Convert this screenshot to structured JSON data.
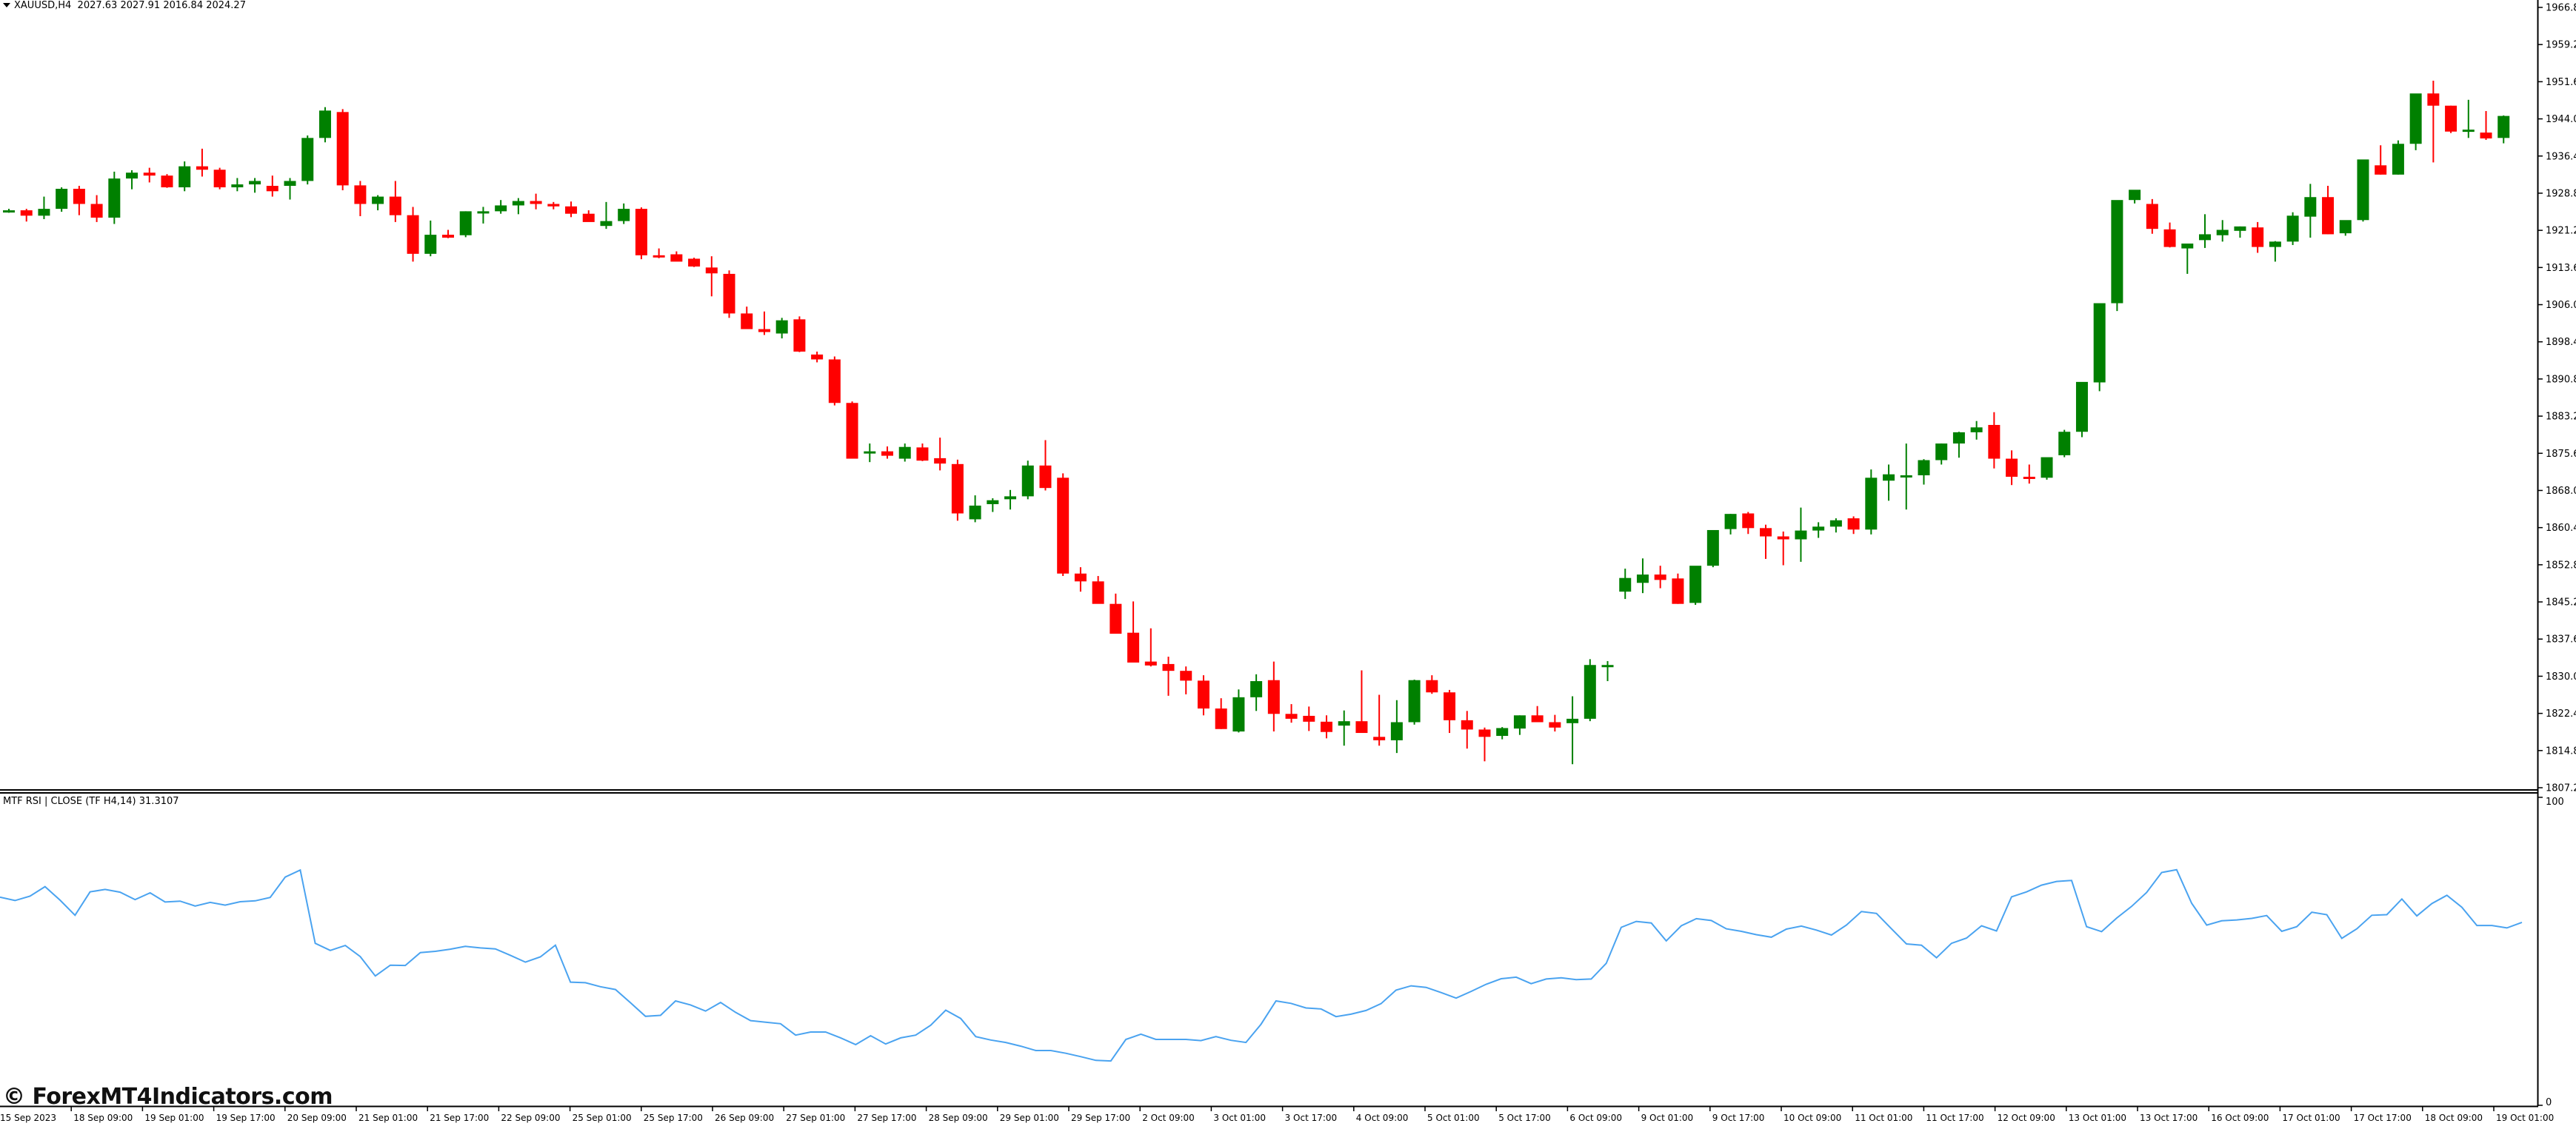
{
  "header": {
    "symbol": "XAUUSD,H4",
    "ohlc": "2027.63 2027.91 2016.84 2024.27"
  },
  "indicator": {
    "label": "MTF RSI | CLOSE  (TF H4,14) 31.3107",
    "line_color": "#4aa3f0"
  },
  "watermark": "© ForexMT4Indicators.com",
  "colors": {
    "bull": "#008000",
    "bear": "#ff0000",
    "axis": "#000000",
    "background": "#ffffff"
  },
  "chart_data": [
    {
      "type": "candlestick",
      "title": "XAUUSD,H4",
      "ylabel": "Price",
      "ylim": [
        1807.2,
        1966.8
      ],
      "y_ticks": [
        "1966.8",
        "1959.2",
        "1951.6",
        "1944.0",
        "1936.4",
        "1928.8",
        "1921.2",
        "1913.6",
        "1906.0",
        "1898.4",
        "1890.8",
        "1883.2",
        "1875.6",
        "1868.0",
        "1860.4",
        "1852.8",
        "1845.2",
        "1837.6",
        "1830.0",
        "1822.4",
        "1814.8",
        "1807.2"
      ],
      "x_ticks": [
        "15 Sep 2023",
        "18 Sep 09:00",
        "19 Sep 01:00",
        "19 Sep 17:00",
        "20 Sep 09:00",
        "21 Sep 01:00",
        "21 Sep 17:00",
        "22 Sep 09:00",
        "25 Sep 01:00",
        "25 Sep 17:00",
        "26 Sep 09:00",
        "27 Sep 01:00",
        "27 Sep 17:00",
        "28 Sep 09:00",
        "29 Sep 01:00",
        "29 Sep 17:00",
        "2 Oct 09:00",
        "3 Oct 01:00",
        "3 Oct 17:00",
        "4 Oct 09:00",
        "5 Oct 01:00",
        "5 Oct 17:00",
        "6 Oct 09:00",
        "9 Oct 01:00",
        "9 Oct 17:00",
        "10 Oct 09:00",
        "11 Oct 01:00",
        "11 Oct 17:00",
        "12 Oct 09:00",
        "13 Oct 01:00",
        "13 Oct 17:00",
        "16 Oct 09:00",
        "17 Oct 01:00",
        "17 Oct 17:00",
        "18 Oct 09:00",
        "19 Oct 01:00"
      ],
      "grid": false,
      "candles": [
        [
          1925.3,
          1925.6,
          1924.8,
          1925.3
        ],
        [
          1925.3,
          1925.6,
          1923.0,
          1924.2
        ],
        [
          1924.2,
          1928.1,
          1923.5,
          1925.6
        ],
        [
          1925.6,
          1930.0,
          1925.0,
          1929.7
        ],
        [
          1929.7,
          1930.3,
          1924.3,
          1926.6
        ],
        [
          1926.6,
          1928.4,
          1922.9,
          1923.8
        ],
        [
          1923.8,
          1933.2,
          1922.5,
          1931.8
        ],
        [
          1931.8,
          1933.5,
          1929.6,
          1933.0
        ],
        [
          1933.0,
          1934.0,
          1931.0,
          1932.4
        ],
        [
          1932.4,
          1932.7,
          1929.9,
          1930.0
        ],
        [
          1930.0,
          1935.3,
          1929.2,
          1934.3
        ],
        [
          1934.3,
          1937.9,
          1932.2,
          1933.6
        ],
        [
          1933.6,
          1934.0,
          1929.6,
          1930.0
        ],
        [
          1930.0,
          1931.9,
          1929.2,
          1930.6
        ],
        [
          1930.6,
          1931.9,
          1928.9,
          1931.3
        ],
        [
          1930.3,
          1932.4,
          1928.1,
          1929.2
        ],
        [
          1930.3,
          1931.9,
          1927.5,
          1931.3
        ],
        [
          1931.3,
          1940.6,
          1930.6,
          1940.1
        ],
        [
          1940.1,
          1946.4,
          1939.2,
          1945.7
        ],
        [
          1945.4,
          1946.0,
          1929.4,
          1930.4
        ],
        [
          1930.4,
          1931.3,
          1924.1,
          1926.6
        ],
        [
          1926.6,
          1928.4,
          1925.3,
          1928.1
        ],
        [
          1928.1,
          1931.3,
          1922.9,
          1924.3
        ],
        [
          1924.3,
          1926.0,
          1914.8,
          1916.4
        ],
        [
          1916.4,
          1923.2,
          1915.9,
          1920.3
        ],
        [
          1920.3,
          1921.3,
          1919.6,
          1919.7
        ],
        [
          1920.2,
          1925.1,
          1919.8,
          1925.1
        ],
        [
          1925.1,
          1926.0,
          1922.6,
          1925.1
        ],
        [
          1925.1,
          1927.4,
          1924.6,
          1926.3
        ],
        [
          1926.3,
          1927.8,
          1924.5,
          1927.2
        ],
        [
          1927.2,
          1928.7,
          1925.5,
          1926.6
        ],
        [
          1926.6,
          1927.0,
          1925.5,
          1926.1
        ],
        [
          1926.1,
          1927.1,
          1923.9,
          1924.6
        ],
        [
          1924.6,
          1925.3,
          1923.5,
          1922.9
        ],
        [
          1922.1,
          1927.0,
          1921.5,
          1923.1
        ],
        [
          1923.1,
          1926.7,
          1922.5,
          1925.6
        ],
        [
          1925.6,
          1925.9,
          1915.3,
          1916.1
        ],
        [
          1916.1,
          1917.5,
          1915.5,
          1915.7
        ],
        [
          1916.3,
          1916.9,
          1914.9,
          1914.8
        ],
        [
          1915.4,
          1915.6,
          1913.7,
          1913.8
        ],
        [
          1913.6,
          1915.9,
          1907.7,
          1912.4
        ],
        [
          1912.3,
          1913.0,
          1903.3,
          1904.2
        ],
        [
          1904.2,
          1905.6,
          1901.3,
          1901.0
        ],
        [
          1901.0,
          1904.6,
          1899.8,
          1900.4
        ],
        [
          1900.1,
          1903.3,
          1899.1,
          1902.8
        ],
        [
          1903.0,
          1903.6,
          1896.3,
          1896.4
        ],
        [
          1895.8,
          1896.4,
          1894.2,
          1894.8
        ],
        [
          1894.8,
          1895.4,
          1885.4,
          1885.9
        ],
        [
          1885.9,
          1886.2,
          1875.0,
          1874.5
        ],
        [
          1875.6,
          1877.6,
          1873.8,
          1876.0
        ],
        [
          1876.0,
          1877.0,
          1874.5,
          1875.1
        ],
        [
          1874.5,
          1877.6,
          1873.9,
          1876.9
        ],
        [
          1876.8,
          1877.6,
          1874.0,
          1874.1
        ],
        [
          1874.6,
          1878.8,
          1872.1,
          1873.5
        ],
        [
          1873.4,
          1874.3,
          1861.8,
          1863.3
        ],
        [
          1862.1,
          1867.0,
          1861.5,
          1864.9
        ],
        [
          1865.2,
          1866.4,
          1863.6,
          1866.0
        ],
        [
          1866.2,
          1868.1,
          1864.1,
          1866.8
        ],
        [
          1866.8,
          1874.1,
          1866.2,
          1873.1
        ],
        [
          1873.1,
          1878.3,
          1868.0,
          1868.5
        ],
        [
          1870.6,
          1871.5,
          1850.5,
          1851.0
        ],
        [
          1851.0,
          1852.3,
          1847.3,
          1849.4
        ],
        [
          1849.4,
          1850.5,
          1845.0,
          1844.8
        ],
        [
          1844.8,
          1846.9,
          1840.5,
          1838.7
        ],
        [
          1838.9,
          1845.3,
          1834.0,
          1832.8
        ],
        [
          1833.0,
          1839.8,
          1832.0,
          1832.2
        ],
        [
          1832.5,
          1834.0,
          1826.0,
          1831.1
        ],
        [
          1831.1,
          1832.0,
          1826.3,
          1829.1
        ],
        [
          1829.1,
          1830.2,
          1822.0,
          1823.4
        ],
        [
          1823.4,
          1825.5,
          1819.2,
          1819.2
        ],
        [
          1818.7,
          1827.3,
          1818.5,
          1825.7
        ],
        [
          1825.7,
          1830.4,
          1822.9,
          1829.0
        ],
        [
          1829.2,
          1833.0,
          1818.7,
          1822.3
        ],
        [
          1822.3,
          1824.3,
          1820.5,
          1821.3
        ],
        [
          1821.9,
          1823.8,
          1818.8,
          1820.7
        ],
        [
          1820.7,
          1822.0,
          1817.3,
          1818.6
        ],
        [
          1819.9,
          1823.0,
          1815.8,
          1820.8
        ],
        [
          1820.8,
          1831.2,
          1819.0,
          1818.4
        ],
        [
          1817.6,
          1826.2,
          1815.8,
          1816.9
        ],
        [
          1816.9,
          1825.1,
          1814.3,
          1820.6
        ],
        [
          1820.6,
          1829.3,
          1820.1,
          1829.2
        ],
        [
          1829.2,
          1830.2,
          1826.4,
          1826.7
        ],
        [
          1826.7,
          1827.2,
          1818.4,
          1821.0
        ],
        [
          1821.0,
          1822.9,
          1815.2,
          1819.1
        ],
        [
          1819.1,
          1819.5,
          1812.6,
          1817.6
        ],
        [
          1817.8,
          1819.6,
          1817.1,
          1819.4
        ],
        [
          1819.3,
          1822.0,
          1818.0,
          1822.0
        ],
        [
          1822.0,
          1823.9,
          1820.6,
          1820.6
        ],
        [
          1820.6,
          1822.1,
          1818.7,
          1819.5
        ],
        [
          1820.4,
          1825.9,
          1812.0,
          1821.3
        ],
        [
          1821.3,
          1833.5,
          1820.8,
          1832.3
        ],
        [
          1832.3,
          1833.1,
          1829.0,
          1832.3
        ],
        [
          1847.3,
          1852.0,
          1845.8,
          1850.1
        ],
        [
          1849.1,
          1854.1,
          1847.0,
          1850.8
        ],
        [
          1850.8,
          1852.6,
          1848.0,
          1849.7
        ],
        [
          1850.0,
          1851.0,
          1844.8,
          1844.8
        ],
        [
          1845.0,
          1852.5,
          1844.6,
          1852.6
        ],
        [
          1852.6,
          1858.4,
          1852.3,
          1859.9
        ],
        [
          1860.1,
          1863.2,
          1859.0,
          1863.2
        ],
        [
          1863.3,
          1863.6,
          1859.1,
          1860.3
        ],
        [
          1860.3,
          1861.0,
          1854.0,
          1858.6
        ],
        [
          1858.6,
          1859.6,
          1852.7,
          1858.0
        ],
        [
          1858.0,
          1864.5,
          1853.4,
          1859.8
        ],
        [
          1859.8,
          1861.5,
          1858.3,
          1860.6
        ],
        [
          1860.6,
          1862.3,
          1859.4,
          1861.9
        ],
        [
          1862.3,
          1862.7,
          1859.1,
          1860.0
        ],
        [
          1860.0,
          1872.3,
          1859.0,
          1870.6
        ],
        [
          1870.0,
          1873.3,
          1865.9,
          1871.3
        ],
        [
          1870.9,
          1877.6,
          1864.1,
          1871.1
        ],
        [
          1871.1,
          1874.4,
          1869.2,
          1874.2
        ],
        [
          1874.2,
          1877.6,
          1873.3,
          1877.6
        ],
        [
          1877.6,
          1880.0,
          1874.7,
          1879.9
        ],
        [
          1879.9,
          1882.2,
          1878.4,
          1880.9
        ],
        [
          1881.4,
          1884.0,
          1872.5,
          1874.5
        ],
        [
          1874.5,
          1876.2,
          1869.1,
          1870.8
        ],
        [
          1870.8,
          1873.3,
          1869.4,
          1870.5
        ],
        [
          1870.6,
          1874.7,
          1870.2,
          1874.8
        ],
        [
          1875.2,
          1880.4,
          1874.8,
          1880.0
        ],
        [
          1880.0,
          1883.0,
          1878.9,
          1890.2
        ],
        [
          1890.1,
          1895.1,
          1888.3,
          1906.3
        ],
        [
          1906.3,
          1920.9,
          1904.7,
          1927.4
        ],
        [
          1927.4,
          1929.3,
          1926.7,
          1929.5
        ],
        [
          1926.6,
          1927.6,
          1920.5,
          1921.5
        ],
        [
          1921.4,
          1922.8,
          1917.7,
          1917.8
        ],
        [
          1917.5,
          1918.0,
          1912.3,
          1918.5
        ],
        [
          1919.2,
          1924.5,
          1917.6,
          1920.4
        ],
        [
          1920.2,
          1923.3,
          1918.9,
          1921.3
        ],
        [
          1921.1,
          1922.0,
          1919.7,
          1922.0
        ],
        [
          1921.8,
          1922.9,
          1916.6,
          1917.8
        ],
        [
          1917.8,
          1919.0,
          1914.8,
          1918.9
        ],
        [
          1918.9,
          1924.9,
          1918.2,
          1924.2
        ],
        [
          1924.0,
          1930.7,
          1919.7,
          1928.0
        ],
        [
          1928.0,
          1930.3,
          1920.4,
          1920.4
        ],
        [
          1920.6,
          1923.2,
          1920.1,
          1923.3
        ],
        [
          1923.3,
          1935.1,
          1923.0,
          1935.7
        ],
        [
          1934.5,
          1938.6,
          1932.6,
          1932.6
        ],
        [
          1932.6,
          1939.6,
          1932.6,
          1938.9
        ],
        [
          1938.9,
          1948.4,
          1937.6,
          1949.2
        ],
        [
          1949.2,
          1951.8,
          1935.1,
          1946.7
        ],
        [
          1946.7,
          1946.7,
          1941.1,
          1941.4
        ],
        [
          1941.4,
          1947.9,
          1940.1,
          1941.8
        ],
        [
          1941.2,
          1945.6,
          1939.7,
          1940.0
        ],
        [
          1940.1,
          1944.7,
          1939.0,
          1944.6
        ]
      ]
    },
    {
      "type": "line",
      "title": "MTF RSI | CLOSE (TF H4,14) 31.3107",
      "ylim": [
        0,
        100
      ],
      "y_ticks": [
        "100",
        "0"
      ],
      "series": [
        {
          "name": "RSI",
          "values": [
            67.6,
            66.5,
            67.9,
            71.0,
            66.6,
            61.7,
            69.3,
            70.1,
            69.2,
            66.8,
            69.0,
            66.0,
            66.3,
            64.7,
            65.9,
            65.0,
            66.1,
            66.4,
            67.5,
            74.1,
            76.4,
            52.6,
            50.3,
            51.9,
            48.3,
            42.0,
            45.5,
            45.4,
            49.6,
            50.0,
            50.7,
            51.6,
            51.1,
            50.8,
            48.7,
            46.5,
            48.2,
            52.0,
            40.0,
            39.8,
            38.5,
            37.6,
            33.3,
            28.9,
            29.2,
            33.9,
            32.6,
            30.6,
            33.4,
            30.2,
            27.5,
            27.0,
            26.5,
            22.8,
            23.8,
            23.8,
            21.9,
            19.7,
            22.6,
            19.9,
            21.9,
            22.8,
            26.0,
            30.9,
            28.2,
            22.3,
            21.2,
            20.4,
            19.2,
            17.8,
            17.8,
            16.9,
            15.8,
            14.6,
            14.4,
            21.4,
            23.1,
            21.4,
            21.4,
            21.4,
            21.0,
            22.3,
            21.1,
            20.4,
            26.3,
            33.9,
            33.1,
            31.6,
            31.3,
            28.8,
            29.6,
            30.8,
            33.0,
            37.4,
            38.8,
            38.3,
            36.6,
            34.8,
            37.0,
            39.3,
            41.1,
            41.6,
            39.5,
            41.0,
            41.4,
            40.8,
            41.0,
            46.1,
            57.8,
            59.7,
            59.2,
            53.4,
            58.3,
            60.6,
            60.0,
            57.3,
            56.5,
            55.4,
            54.6,
            57.2,
            58.2,
            56.9,
            55.3,
            58.5,
            62.9,
            62.3,
            57.3,
            52.4,
            52.0,
            47.9,
            52.6,
            54.3,
            58.3,
            56.6,
            67.7,
            69.3,
            71.5,
            72.7,
            73.0,
            58.0,
            56.4,
            60.8,
            64.6,
            69.1,
            75.6,
            76.5,
            65.6,
            58.5,
            59.9,
            60.2,
            60.7,
            61.6,
            56.5,
            58.0,
            62.7,
            61.9,
            54.2,
            57.3,
            61.7,
            61.9,
            67.0,
            61.5,
            65.5,
            68.2,
            64.3,
            58.4,
            58.4,
            57.6,
            59.4
          ]
        }
      ]
    }
  ]
}
